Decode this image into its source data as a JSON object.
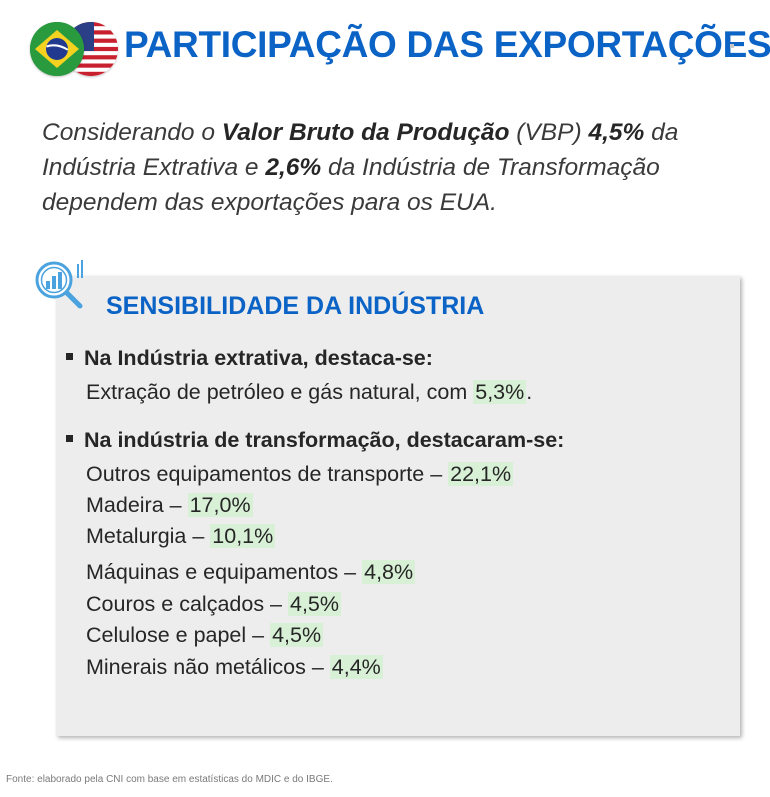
{
  "header": {
    "title": "PARTICIPAÇÃO DAS EXPORTAÇÕES",
    "icons": [
      "brazil-flag-icon",
      "usa-flag-icon"
    ]
  },
  "intro": {
    "p1": "Considerando o ",
    "b1": "Valor Bruto da Produção",
    "p2": " (VBP) ",
    "b2": "4,5%",
    "p3": " da Indústria Extrativa e ",
    "b3": "2,6%",
    "p4": " da Indústria de Transformação dependem das exportações para os EUA."
  },
  "panel": {
    "icon": "chart-magnifier-icon",
    "title": "SENSIBILIDADE DA INDÚSTRIA",
    "extrativa": {
      "heading": "Na Indústria extrativa, destaca-se:",
      "text": "Extração de petróleo e gás natural, com ",
      "value": "5,3%",
      "suffix": "."
    },
    "transformacao": {
      "heading": "Na indústria de transformação, destacaram-se:",
      "items": [
        {
          "label": "Outros equipamentos de transporte – ",
          "value": "22,1%"
        },
        {
          "label": "Madeira – ",
          "value": "17,0%"
        },
        {
          "label": "Metalurgia – ",
          "value": "10,1%"
        },
        {
          "label": "Máquinas e equipamentos – ",
          "value": "4,8%"
        },
        {
          "label": "Couros e calçados – ",
          "value": "4,5%"
        },
        {
          "label": "Celulose e papel – ",
          "value": "4,5%"
        },
        {
          "label": "Minerais não metálicos – ",
          "value": "4,4%"
        }
      ]
    }
  },
  "footer": {
    "source": "Fonte: elaborado pela CNI com base em estatísticas do MDIC e do IBGE."
  },
  "colors": {
    "title_blue": "#0b63c6",
    "panel_bg": "#ededee",
    "highlight_green": "#d8f0d6"
  }
}
